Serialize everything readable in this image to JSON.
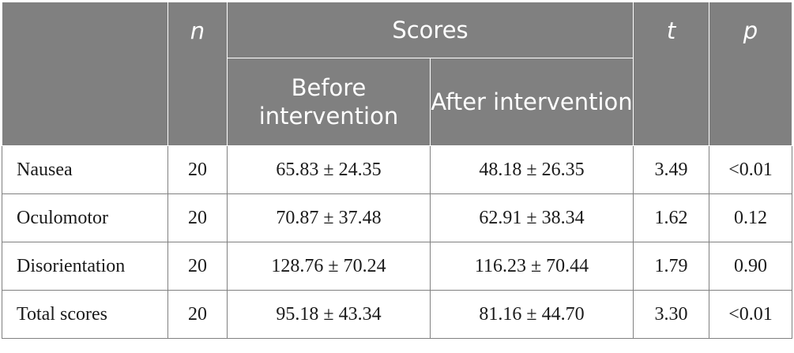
{
  "header": {
    "blank": "",
    "n": "n",
    "scores": "Scores",
    "before": "Before intervention",
    "after": "After intervention",
    "t": "t",
    "p": "p"
  },
  "rows": [
    {
      "label": "Nausea",
      "n": "20",
      "before": "65.83 ± 24.35",
      "after": "48.18 ± 26.35",
      "t": "3.49",
      "p": "<0.01"
    },
    {
      "label": "Oculomotor",
      "n": "20",
      "before": "70.87 ± 37.48",
      "after": "62.91 ± 38.34",
      "t": "1.62",
      "p": "0.12"
    },
    {
      "label": "Disorientation",
      "n": "20",
      "before": "128.76 ± 70.24",
      "after": "116.23 ± 70.44",
      "t": "1.79",
      "p": "0.90"
    },
    {
      "label": "Total scores",
      "n": "20",
      "before": "95.18 ± 43.34",
      "after": "81.16 ± 44.70",
      "t": "3.30",
      "p": "<0.01"
    }
  ]
}
